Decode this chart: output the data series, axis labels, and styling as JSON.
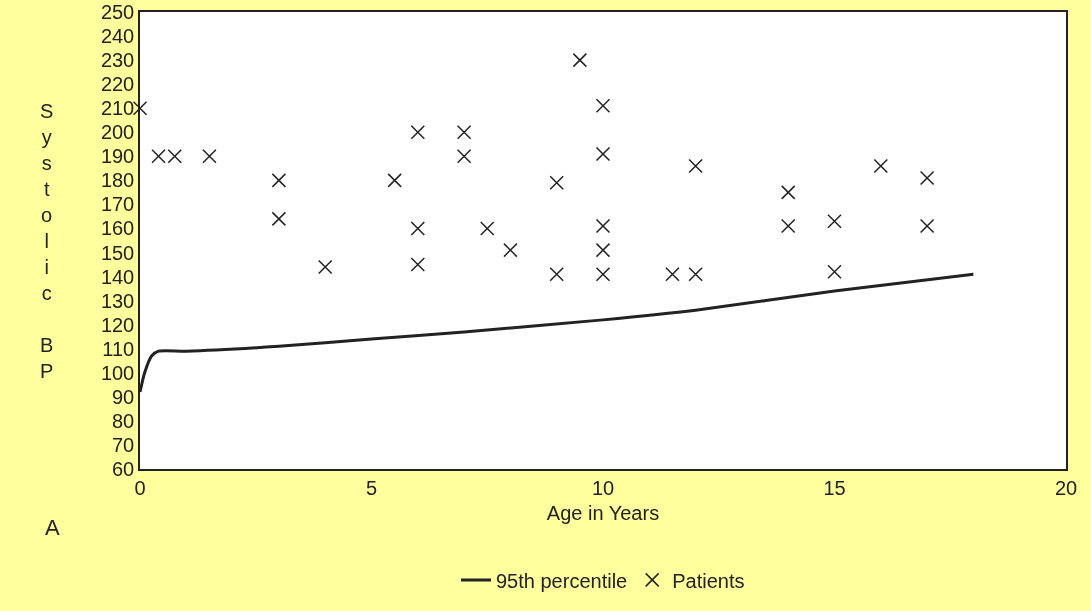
{
  "chart_data": {
    "type": "scatter",
    "xlabel": "Age in Years",
    "ylabel": "Systolic BP",
    "xlim": [
      0,
      20
    ],
    "xticks": [
      0,
      5,
      10,
      15,
      20
    ],
    "ylim": [
      60,
      250
    ],
    "yticks": [
      60,
      70,
      80,
      90,
      100,
      110,
      120,
      130,
      140,
      150,
      160,
      170,
      180,
      190,
      200,
      210,
      220,
      230,
      240,
      250
    ],
    "grid": false,
    "legend": "bottom",
    "annotations": [
      "A"
    ],
    "series": [
      {
        "name": "95th percentile",
        "type": "line",
        "color": "#222222",
        "marker": "none",
        "line_style": "solid",
        "x": [
          0,
          0.1,
          0.25,
          0.4,
          1,
          3,
          5,
          7,
          10,
          12,
          15,
          18
        ],
        "values": [
          92,
          100,
          107,
          109,
          109,
          111,
          114,
          117,
          122,
          126,
          134,
          141
        ]
      },
      {
        "name": "Patients",
        "color": "#222222",
        "marker": "cross",
        "x": [
          0,
          0.4,
          0.75,
          1.5,
          3,
          3,
          4,
          5.5,
          6,
          6,
          6,
          7,
          7,
          7.5,
          8,
          9,
          9,
          9.5,
          10,
          10,
          10,
          10,
          10,
          11.5,
          12,
          12,
          14,
          14,
          15,
          15,
          16,
          17,
          17
        ],
        "values": [
          210,
          190,
          190,
          190,
          180,
          164,
          144,
          180,
          200,
          160,
          145,
          200,
          190,
          160,
          151,
          179,
          141,
          230,
          211,
          191,
          161,
          151,
          141,
          141,
          141,
          186,
          175,
          161,
          163,
          142,
          186,
          181,
          161
        ]
      }
    ]
  }
}
